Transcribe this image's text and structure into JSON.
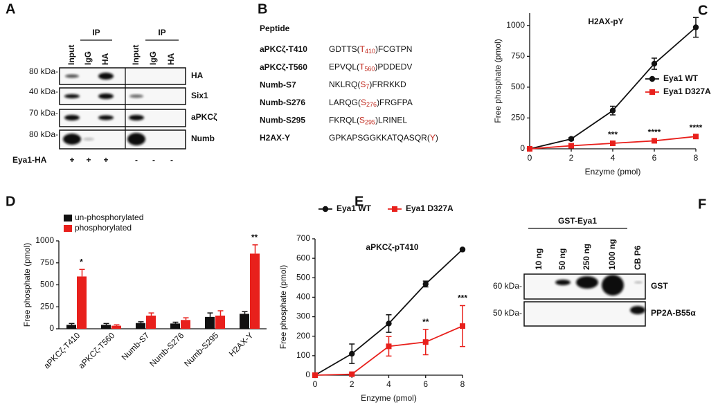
{
  "panel_labels": [
    "A",
    "B",
    "C",
    "D",
    "E",
    "F"
  ],
  "blot_a": {
    "ip_headers": [
      "IP",
      "IP"
    ],
    "lanes": [
      "Input",
      "IgG",
      "HA",
      "Input",
      "IgG",
      "HA"
    ],
    "markers": [
      "80 kDa-",
      "40 kDa-",
      "70 kDa-",
      "80 kDa-"
    ],
    "rows": [
      "HA",
      "Six1",
      "aPKCζ",
      "Numb"
    ],
    "construct": "Eya1-HA",
    "signs": [
      "+",
      "+",
      "+",
      "-",
      "-",
      "-"
    ]
  },
  "peptides": {
    "header": "Peptide",
    "rows": [
      {
        "name": "aPKCζ-T410",
        "pre": "GDTTS(",
        "residue": "T",
        "pos": "410",
        "post": ")FCGTPN"
      },
      {
        "name": "aPKCζ-T560",
        "pre": "EPVQL(",
        "residue": "T",
        "pos": "560",
        "post": ")PDDEDV"
      },
      {
        "name": "Numb-S7",
        "pre": "NKLRQ(",
        "residue": "S",
        "pos": "7",
        "post": ")FRRKKD"
      },
      {
        "name": "Numb-S276",
        "pre": "LARQG(",
        "residue": "S",
        "pos": "276",
        "post": ")FRGFPA"
      },
      {
        "name": "Numb-S295",
        "pre": "FKRQL(",
        "residue": "S",
        "pos": "295",
        "post": ")LRINEL"
      },
      {
        "name": "H2AX-Y",
        "pre": "GPKAPSGGKKATQASQR(",
        "residue": "Y",
        "post": ")"
      }
    ]
  },
  "chart_data": [
    {
      "type": "line",
      "title": "H2AX-pY",
      "xlabel": "Enzyme (pmol)",
      "ylabel": "Free phosphate (pmol)",
      "x": [
        0,
        2,
        4,
        6,
        8
      ],
      "series": [
        {
          "name": "Eya1 WT",
          "color": "#111111",
          "marker": "circle",
          "values": [
            0,
            80,
            310,
            690,
            985
          ],
          "errors": [
            0,
            10,
            35,
            45,
            80
          ]
        },
        {
          "name": "Eya1 D327A",
          "color": "#e8201c",
          "marker": "square",
          "values": [
            0,
            25,
            45,
            65,
            100
          ],
          "errors": [
            0,
            5,
            8,
            8,
            10
          ]
        }
      ],
      "xlim": [
        0,
        8
      ],
      "ylim": [
        0,
        1100
      ],
      "xticks": [
        0,
        2,
        4,
        6,
        8
      ],
      "yticks": [
        0,
        250,
        500,
        750,
        1000
      ],
      "legend": "right",
      "annotations": [
        {
          "text": "***",
          "x": 4
        },
        {
          "text": "****",
          "x": 6
        },
        {
          "text": "****",
          "x": 8
        }
      ]
    },
    {
      "type": "bar",
      "ylabel": "Free phosphate (pmol)",
      "categories": [
        "aPKCζ-T410",
        "aPKCζ-T560",
        "Numb-S7",
        "Numb-S276",
        "Numb-S295",
        "H2AX-Y"
      ],
      "series": [
        {
          "name": "un-phosphorylated",
          "color": "#111111",
          "values": [
            45,
            45,
            65,
            60,
            135,
            170
          ],
          "errors": [
            15,
            15,
            15,
            15,
            45,
            25
          ]
        },
        {
          "name": "phosphorylated",
          "color": "#e8201c",
          "values": [
            595,
            35,
            150,
            100,
            150,
            855
          ],
          "errors": [
            80,
            10,
            30,
            25,
            55,
            100
          ]
        }
      ],
      "ylim": [
        0,
        1000
      ],
      "yticks": [
        0,
        250,
        500,
        750,
        1000
      ],
      "legend": "top-left",
      "annotations": [
        {
          "text": "*",
          "x": "aPKCζ-T410"
        },
        {
          "text": "**",
          "x": "H2AX-Y"
        }
      ]
    },
    {
      "type": "line",
      "title": "aPKCζ-pT410",
      "xlabel": "Enzyme (pmol)",
      "ylabel": "Free phosphate (pmol)",
      "x": [
        0,
        2,
        4,
        6,
        8
      ],
      "series": [
        {
          "name": "Eya1 WT",
          "color": "#111111",
          "marker": "circle",
          "values": [
            0,
            110,
            265,
            468,
            645
          ],
          "errors": [
            0,
            50,
            45,
            15,
            5
          ]
        },
        {
          "name": "Eya1 D327A",
          "color": "#e8201c",
          "marker": "square",
          "values": [
            0,
            5,
            148,
            170,
            252
          ],
          "errors": [
            0,
            5,
            50,
            65,
            105
          ]
        }
      ],
      "xlim": [
        0,
        8
      ],
      "ylim": [
        0,
        700
      ],
      "xticks": [
        0,
        2,
        4,
        6,
        8
      ],
      "yticks": [
        0,
        100,
        200,
        300,
        400,
        500,
        600,
        700
      ],
      "legend": "top",
      "annotations": [
        {
          "text": "**",
          "x": 6
        },
        {
          "text": "***",
          "x": 8
        }
      ]
    }
  ],
  "blot_f": {
    "header": "GST-Eya1",
    "lanes": [
      "10 ng",
      "50 ng",
      "250 ng",
      "1000 ng",
      "CB P6"
    ],
    "markers": [
      "60 kDa-",
      "50 kDa-"
    ],
    "rows": [
      "GST",
      "PP2A-B55α"
    ]
  }
}
